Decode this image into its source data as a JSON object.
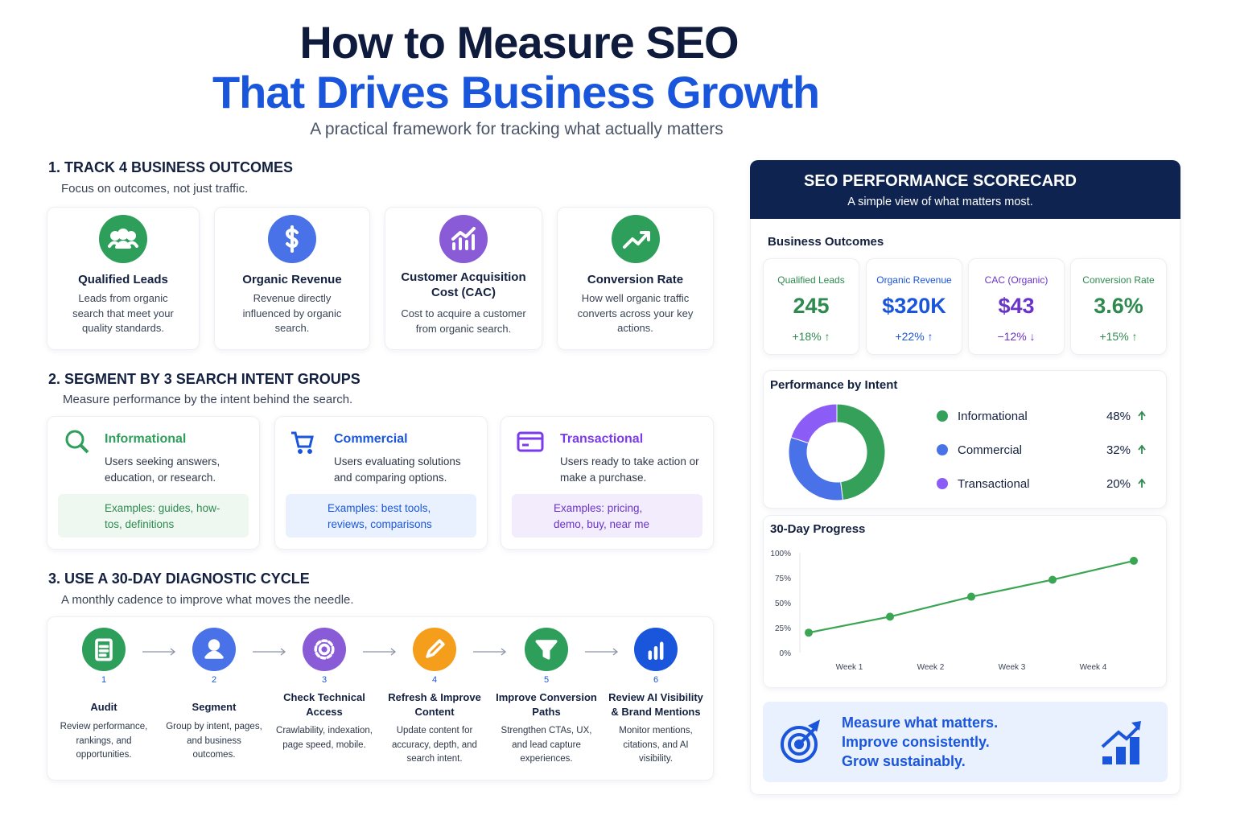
{
  "header": {
    "title_line1": "How to Measure SEO",
    "title_line2": "That Drives Business Growth",
    "subtitle": "A practical framework for tracking what actually matters"
  },
  "outcomes": {
    "heading": "1. TRACK 4 BUSINESS OUTCOMES",
    "subheading": "Focus on outcomes, not just traffic.",
    "cards": [
      {
        "title": "Qualified Leads",
        "text": "Leads from organic search that meet your quality standards."
      },
      {
        "title": "Organic Revenue",
        "text": "Revenue directly influenced by organic search."
      },
      {
        "title": "Customer Acquisition Cost (CAC)",
        "text": "Cost to acquire a customer from organic search."
      },
      {
        "title": "Conversion Rate",
        "text": "How well organic traffic converts across your key actions."
      }
    ]
  },
  "intents": {
    "heading": "2. SEGMENT BY 3 SEARCH INTENT GROUPS",
    "subheading": "Measure performance by the intent behind the search.",
    "groups": [
      {
        "title": "Informational",
        "text": "Users seeking answers, education, or research.",
        "examples": "Examples: guides, how-tos, definitions"
      },
      {
        "title": "Commercial",
        "text": "Users evaluating solutions and comparing options.",
        "examples": "Examples: best tools, reviews, comparisons"
      },
      {
        "title": "Transactional",
        "text": "Users ready to take action or make a purchase.",
        "examples": "Examples: pricing, demo, buy, near me"
      }
    ]
  },
  "cycle": {
    "heading": "3. USE A 30-DAY DIAGNOSTIC CYCLE",
    "subheading": "A monthly cadence to improve what moves the needle.",
    "steps": [
      {
        "number": "1",
        "title": "Audit",
        "text": "Review performance, rankings, and opportunities."
      },
      {
        "number": "2",
        "title": "Segment",
        "text": "Group by intent, pages, and business outcomes."
      },
      {
        "number": "3",
        "title": "Check Technical Access",
        "text": "Crawlability, indexation, page speed, mobile."
      },
      {
        "number": "4",
        "title": "Refresh & Improve Content",
        "text": "Update content for accuracy, depth, and search intent."
      },
      {
        "number": "5",
        "title": "Improve Conversion Paths",
        "text": "Strengthen CTAs, UX, and lead capture experiences."
      },
      {
        "number": "6",
        "title": "Review AI Visibility & Brand Mentions",
        "text": "Monitor mentions, citations, and AI visibility."
      }
    ]
  },
  "scorecard": {
    "title": "SEO PERFORMANCE SCORECARD",
    "subtitle": "A simple view of what matters most.",
    "outcomes_heading": "Business Outcomes",
    "kpis": [
      {
        "label": "Qualified Leads",
        "value": "245",
        "change": "+18% ↑"
      },
      {
        "label": "Organic Revenue",
        "value": "$320K",
        "change": "+22% ↑"
      },
      {
        "label": "CAC (Organic)",
        "value": "$43",
        "change": "−12% ↓"
      },
      {
        "label": "Conversion Rate",
        "value": "3.6%",
        "change": "+15% ↑"
      }
    ],
    "banner": [
      "Measure what matters.",
      "Improve consistently.",
      "Grow sustainably."
    ]
  },
  "chart_data": [
    {
      "type": "donut",
      "title": "Performance by Intent",
      "categories": [
        "Informational",
        "Commercial",
        "Transactional"
      ],
      "values": [
        48,
        32,
        20
      ],
      "value_labels": [
        "48%",
        "32%",
        "20%"
      ],
      "colors": [
        "#34a05a",
        "#4a72e8",
        "#8b5cf6"
      ]
    },
    {
      "type": "line",
      "title": "30-Day Progress",
      "x": [
        0,
        1,
        2,
        3,
        4
      ],
      "values": [
        20,
        36,
        56,
        73,
        92
      ],
      "color": "#3aa552",
      "xlim": [
        0,
        4
      ],
      "ylim": [
        0,
        100
      ],
      "xticks": [
        {
          "value": 0.5,
          "label": "Week 1"
        },
        {
          "value": 1.5,
          "label": "Week 2"
        },
        {
          "value": 2.5,
          "label": "Week 3"
        },
        {
          "value": 3.5,
          "label": "Week 4"
        }
      ],
      "yticks": [
        {
          "value": 0,
          "label": "0%"
        },
        {
          "value": 25,
          "label": "25%"
        },
        {
          "value": 50,
          "label": "50%"
        },
        {
          "value": 75,
          "label": "75%"
        },
        {
          "value": 100,
          "label": "100%"
        }
      ]
    }
  ]
}
